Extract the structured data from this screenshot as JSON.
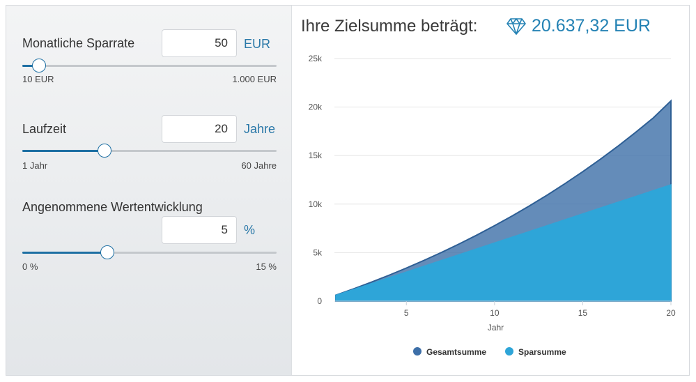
{
  "controls": [
    {
      "label": "Monatliche Sparrate",
      "value": "50",
      "unit": "EUR",
      "min_label": "10 EUR",
      "max_label": "1.000 EUR",
      "min": 10,
      "max": 1000,
      "current": 50
    },
    {
      "label": "Laufzeit",
      "value": "20",
      "unit": "Jahre",
      "min_label": "1 Jahr",
      "max_label": "60 Jahre",
      "min": 1,
      "max": 60,
      "current": 20
    },
    {
      "label": "Angenommene Wertentwicklung",
      "value": "5",
      "unit": "%",
      "min_label": "0 %",
      "max_label": "15 %",
      "min": 0,
      "max": 15,
      "current": 5
    }
  ],
  "result": {
    "title": "Ihre Zielsumme beträgt:",
    "value": "20.637,32 EUR",
    "icon": "diamond-icon",
    "color": "#2482b4"
  },
  "chart_data": {
    "type": "area",
    "x": [
      1,
      2,
      3,
      4,
      5,
      6,
      7,
      8,
      9,
      10,
      11,
      12,
      13,
      14,
      15,
      16,
      17,
      18,
      19,
      20
    ],
    "x_ticks": [
      5,
      10,
      15,
      20
    ],
    "xlabel": "Jahr",
    "ylim": [
      0,
      25000
    ],
    "y_ticks": [
      0,
      5000,
      10000,
      15000,
      20000,
      25000
    ],
    "y_tick_labels": [
      "0",
      "5k",
      "10k",
      "15k",
      "20k",
      "25k"
    ],
    "grid": true,
    "legend_position": "bottom-center",
    "series": [
      {
        "name": "Gesamtsumme",
        "color": "#3d6fa8",
        "values": [
          617,
          1265,
          1946,
          2661,
          3412,
          4201,
          5029,
          5899,
          6813,
          7772,
          8780,
          9839,
          10950,
          12118,
          13342,
          14627,
          15980,
          17400,
          18890,
          20637
        ]
      },
      {
        "name": "Sparsumme",
        "color": "#2ea5d8",
        "values": [
          600,
          1200,
          1800,
          2400,
          3000,
          3600,
          4200,
          4800,
          5400,
          6000,
          6600,
          7200,
          7800,
          8400,
          9000,
          9600,
          10200,
          10800,
          11400,
          12000
        ]
      }
    ]
  }
}
